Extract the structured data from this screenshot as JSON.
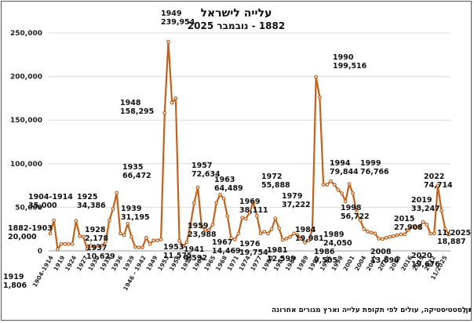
{
  "chart_data": {
    "type": "line",
    "title": "עלייה לישראל",
    "subtitle": "1882 - נובמבר 2025",
    "xlabel": "",
    "ylabel": "",
    "ylim": [
      0,
      250000
    ],
    "yticks": [
      0,
      50000,
      100000,
      150000,
      200000,
      250000
    ],
    "ytick_labels": [
      "0",
      "50,000",
      "100,000",
      "150,000",
      "200,000",
      "250,000"
    ],
    "xtick_labels": [
      "1904-1914",
      "1919",
      "1924",
      "1927",
      "1930",
      "1933",
      "1936",
      "1939",
      "1946 - 1942",
      "1949",
      "1953",
      "1956",
      "1959",
      "1962",
      "1965",
      "1968",
      "1971",
      "1974",
      "1977",
      "1980",
      "1983",
      "1986",
      "1989",
      "1992",
      "1995",
      "1998",
      "2001",
      "2004",
      "2007",
      "2010",
      "2013",
      "2016",
      "2019",
      "2022",
      "11/2025"
    ],
    "grid": true,
    "legend": "none",
    "series": [
      {
        "name": "עלייה לישראל",
        "color": "#c0621c",
        "values": [
          20000,
          35000,
          1806,
          8000,
          8000,
          8000,
          8000,
          34386,
          17000,
          16000,
          2178,
          6000,
          4000,
          6000,
          6000,
          10629,
          35000,
          48000,
          66472,
          20000,
          18000,
          31195,
          16000,
          4592,
          4000,
          4000,
          15000,
          8000,
          12000,
          12000,
          13000,
          158295,
          239954,
          170000,
          175000,
          11575,
          5000,
          10000,
          30000,
          55000,
          72634,
          28000,
          24000,
          23988,
          30000,
          55000,
          64489,
          60000,
          40000,
          14469,
          13000,
          20000,
          38111,
          37000,
          44000,
          55888,
          40000,
          20000,
          22000,
          19754,
          25000,
          37222,
          26000,
          12599,
          14000,
          16000,
          19981,
          18000,
          14000,
          9505,
          12000,
          24050,
          199516,
          176000,
          76000,
          76000,
          79844,
          76000,
          70000,
          66000,
          56722,
          76766,
          66000,
          44000,
          35000,
          25000,
          22000,
          21000,
          20000,
          14000,
          13699,
          15000,
          16000,
          17000,
          18000,
          19000,
          19000,
          24000,
          27908,
          27000,
          28000,
          33247,
          30000,
          19676,
          20000,
          74714,
          46000,
          25000,
          18887
        ]
      }
    ],
    "annotations": [
      {
        "text": "1882-1903\n20,000"
      },
      {
        "text": "1904-1914\n35,000"
      },
      {
        "text": "1919\n1,806"
      },
      {
        "text": "1925\n34,386"
      },
      {
        "text": "1928\n2,178"
      },
      {
        "text": "1935\n66,472"
      },
      {
        "text": "1937\n10,629"
      },
      {
        "text": "1939\n31,195"
      },
      {
        "text": "1941\n4,592"
      },
      {
        "text": "1948\n158,295"
      },
      {
        "text": "1949\n239,954"
      },
      {
        "text": "1953\n11,575"
      },
      {
        "text": "1957\n72,634"
      },
      {
        "text": "1959\n23,988"
      },
      {
        "text": "1963\n64,489"
      },
      {
        "text": "1967\n14,469"
      },
      {
        "text": "1969\n38,111"
      },
      {
        "text": "1972\n55,888"
      },
      {
        "text": "1976\n19,754"
      },
      {
        "text": "1979\n37,222"
      },
      {
        "text": "1981\n12,599"
      },
      {
        "text": "1984\n19,981"
      },
      {
        "text": "1986\n9,505"
      },
      {
        "text": "1989\n24,050"
      },
      {
        "text": "1990\n199,516"
      },
      {
        "text": "1994\n79,844"
      },
      {
        "text": "1998\n56,722"
      },
      {
        "text": "1999\n76,766"
      },
      {
        "text": "2008\n13,699"
      },
      {
        "text": "2015\n27,908"
      },
      {
        "text": "2019\n33,247"
      },
      {
        "text": "2020\n19,676"
      },
      {
        "text": "2022\n74,714"
      },
      {
        "text": "11/2025\n18,887"
      }
    ],
    "footer_left": "הוכן על ידי: יעקב פייטלסון,",
    "footer_right": "המקור: הלשכה המרכזית לסטטיסטיקה, עולים לפי תקופת עלייה וארץ מגורים אחרונה"
  }
}
